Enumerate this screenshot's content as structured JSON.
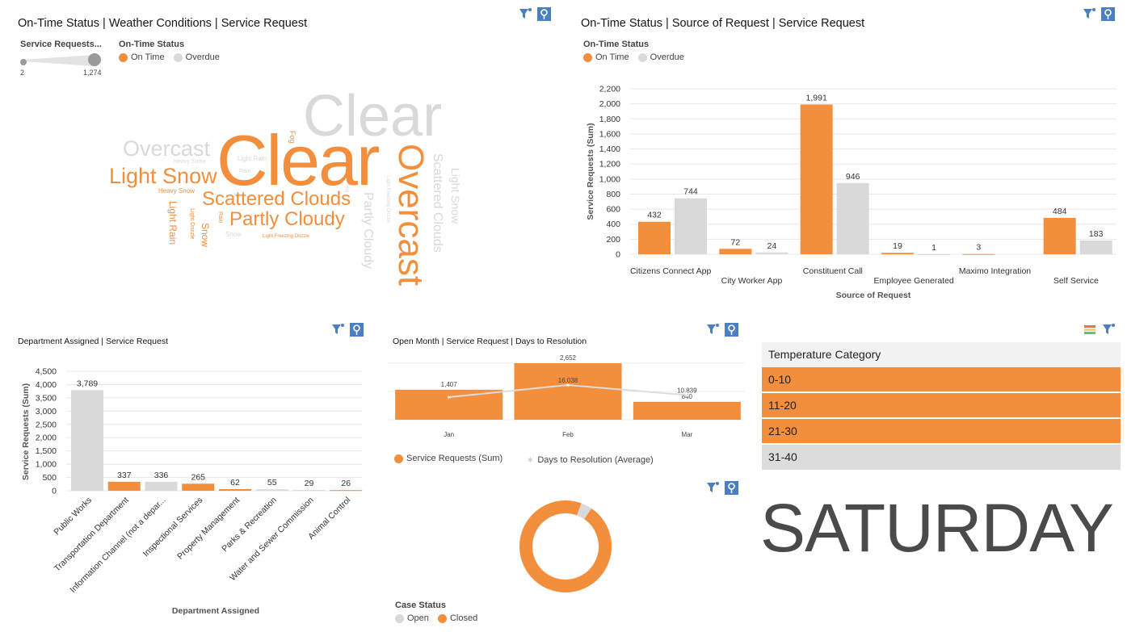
{
  "colors": {
    "on_time": "#f28e3c",
    "overdue": "#d9d9d9",
    "accent_blue": "#4a7fc1",
    "grid": "#e8e8e8"
  },
  "icons": {
    "filter": "filter-icon",
    "pin": "pin-icon",
    "palette": "palette-icon"
  },
  "wordcloud": {
    "title": "On-Time Status | Weather Conditions | Service Request",
    "size_legend": {
      "title": "Service Requests...",
      "min": "2",
      "max": "1,274"
    },
    "status_legend": {
      "title": "On-Time Status",
      "items": [
        "On Time",
        "Overdue"
      ]
    },
    "words": [
      {
        "text": "Clear",
        "status": "overdue"
      },
      {
        "text": "Clear",
        "status": "on_time"
      },
      {
        "text": "Overcast",
        "status": "overdue"
      },
      {
        "text": "Overcast",
        "status": "on_time"
      },
      {
        "text": "Light Snow",
        "status": "on_time"
      },
      {
        "text": "Heavy Snow",
        "status": "overdue"
      },
      {
        "text": "Heavy Snow",
        "status": "on_time"
      },
      {
        "text": "Scattered Clouds",
        "status": "on_time"
      },
      {
        "text": "Scattered Clouds",
        "status": "overdue"
      },
      {
        "text": "Partly Cloudy",
        "status": "on_time"
      },
      {
        "text": "Partly Cloudy",
        "status": "overdue"
      },
      {
        "text": "Light Snow",
        "status": "overdue"
      },
      {
        "text": "Light Rain",
        "status": "on_time"
      },
      {
        "text": "Light Rain",
        "status": "overdue"
      },
      {
        "text": "Light Drizzle",
        "status": "on_time"
      },
      {
        "text": "Rain",
        "status": "on_time"
      },
      {
        "text": "Rain",
        "status": "overdue"
      },
      {
        "text": "Snow",
        "status": "on_time"
      },
      {
        "text": "Snow",
        "status": "overdue"
      },
      {
        "text": "Fog",
        "status": "on_time"
      },
      {
        "text": "Fog",
        "status": "overdue"
      },
      {
        "text": "Light Freezing Drizzle",
        "status": "on_time"
      },
      {
        "text": "Light Freezing Drizzle",
        "status": "overdue"
      }
    ]
  },
  "source_chart": {
    "title": "On-Time Status | Source of Request | Service Request",
    "legend": {
      "title": "On-Time Status",
      "items": [
        "On Time",
        "Overdue"
      ]
    }
  },
  "dept_chart": {
    "title": "Department Assigned | Service Request"
  },
  "month_chart": {
    "title": "Open Month | Service Request | Days to Resolution",
    "legend": [
      "Service Requests (Sum)",
      "Days to Resolution (Average)"
    ]
  },
  "case_status": {
    "legend": {
      "title": "Case Status",
      "items": [
        "Open",
        "Closed"
      ]
    }
  },
  "temperature": {
    "header": "Temperature Category",
    "rows": [
      {
        "label": "0-10",
        "color": "#f28e3c"
      },
      {
        "label": "11-20",
        "color": "#f28e3c"
      },
      {
        "label": "21-30",
        "color": "#f28e3c"
      },
      {
        "label": "31-40",
        "color": "#dcdcdc"
      }
    ]
  },
  "day_label": "SATURDAY",
  "chart_data": [
    {
      "type": "bar",
      "title": "On-Time Status | Source of Request | Service Request",
      "xlabel": "Source of Request",
      "ylabel": "Service Requests (Sum)",
      "ylim": [
        0,
        2200
      ],
      "yticks": [
        "0",
        "200",
        "400",
        "600",
        "800",
        "1,000",
        "1,200",
        "1,400",
        "1,600",
        "1,800",
        "2,000",
        "2,200"
      ],
      "categories": [
        "Citizens Connect App",
        "City Worker App",
        "Constituent Call",
        "Employee Generated",
        "Maximo Integration",
        "Self Service"
      ],
      "series": [
        {
          "name": "On Time",
          "values": [
            432,
            72,
            1991,
            19,
            3,
            484
          ],
          "labels": [
            "432",
            "72",
            "1,991",
            "19",
            "3",
            "484"
          ]
        },
        {
          "name": "Overdue",
          "values": [
            744,
            24,
            946,
            1,
            null,
            183
          ],
          "labels": [
            "744",
            "24",
            "946",
            "1",
            "",
            "183"
          ]
        }
      ],
      "grid": true
    },
    {
      "type": "bar",
      "title": "Department Assigned | Service Request",
      "xlabel": "Department Assigned",
      "ylabel": "Service Requests (Sum)",
      "ylim": [
        0,
        4500
      ],
      "yticks": [
        "0",
        "500",
        "1,000",
        "1,500",
        "2,000",
        "2,500",
        "3,000",
        "3,500",
        "4,000",
        "4,500"
      ],
      "categories": [
        "Public Works",
        "Transportation Department",
        "Information Channel (not a depar...",
        "Inspectional Services",
        "Property Management",
        "Parks & Recreation",
        "Water and Sewer Commission",
        "Animal Control"
      ],
      "values": [
        3789,
        337,
        336,
        265,
        62,
        55,
        29,
        26
      ],
      "labels": [
        "3,789",
        "337",
        "336",
        "265",
        "62",
        "55",
        "29",
        "26"
      ],
      "bar_colors": [
        "overdue",
        "on_time",
        "overdue",
        "on_time",
        "on_time",
        "overdue",
        "overdue",
        "on_time"
      ],
      "grid": true
    },
    {
      "type": "bar",
      "title": "Open Month | Service Request | Days to Resolution",
      "categories": [
        "Jan",
        "Feb",
        "Mar"
      ],
      "series": [
        {
          "name": "Service Requests (Sum)",
          "values": [
            1407,
            2652,
            840
          ],
          "labels": [
            "1,407",
            "2,652",
            "840"
          ]
        },
        {
          "name": "Days to Resolution (Average)",
          "type": "line",
          "values": [
            9.8,
            16.038,
            10.839
          ],
          "labels": [
            "",
            "16.038",
            "10.839"
          ]
        }
      ]
    },
    {
      "type": "pie",
      "title": "",
      "categories": [
        "Open",
        "Closed"
      ],
      "values": [
        4,
        96
      ],
      "donut": true
    }
  ]
}
